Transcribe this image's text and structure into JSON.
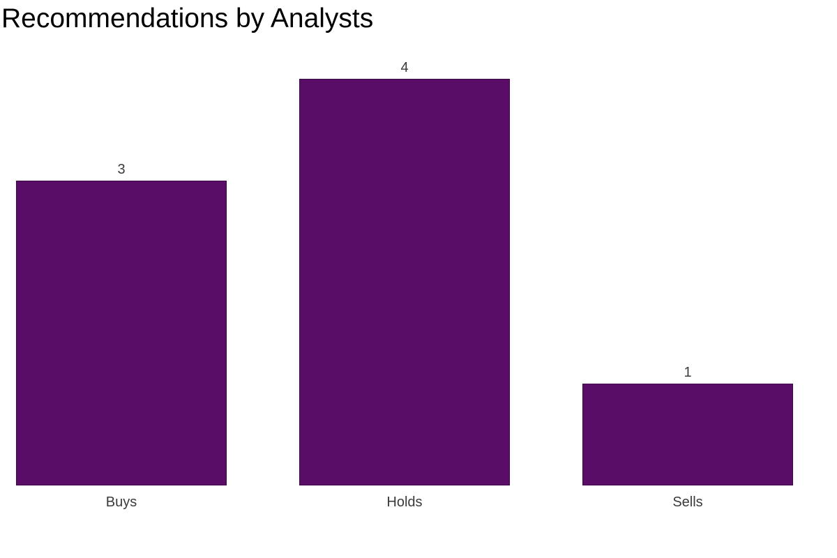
{
  "title": "Recommendations by Analysts",
  "colors": {
    "background": "#ffffff",
    "bar_fill": "#5a0d66",
    "bar_edge": "#3f0749",
    "title_text": "#000000",
    "label_text": "#3a3a3a"
  },
  "chart_data": {
    "type": "bar",
    "title": "Recommendations by Analysts",
    "categories": [
      "Buys",
      "Holds",
      "Sells"
    ],
    "values": [
      3,
      4,
      1
    ],
    "bar_labels": [
      "3",
      "4",
      "1"
    ],
    "xlabel": "",
    "ylabel": "",
    "ylim": [
      0,
      4.4
    ],
    "grid": false,
    "legend": "none",
    "axes_visible": false
  }
}
